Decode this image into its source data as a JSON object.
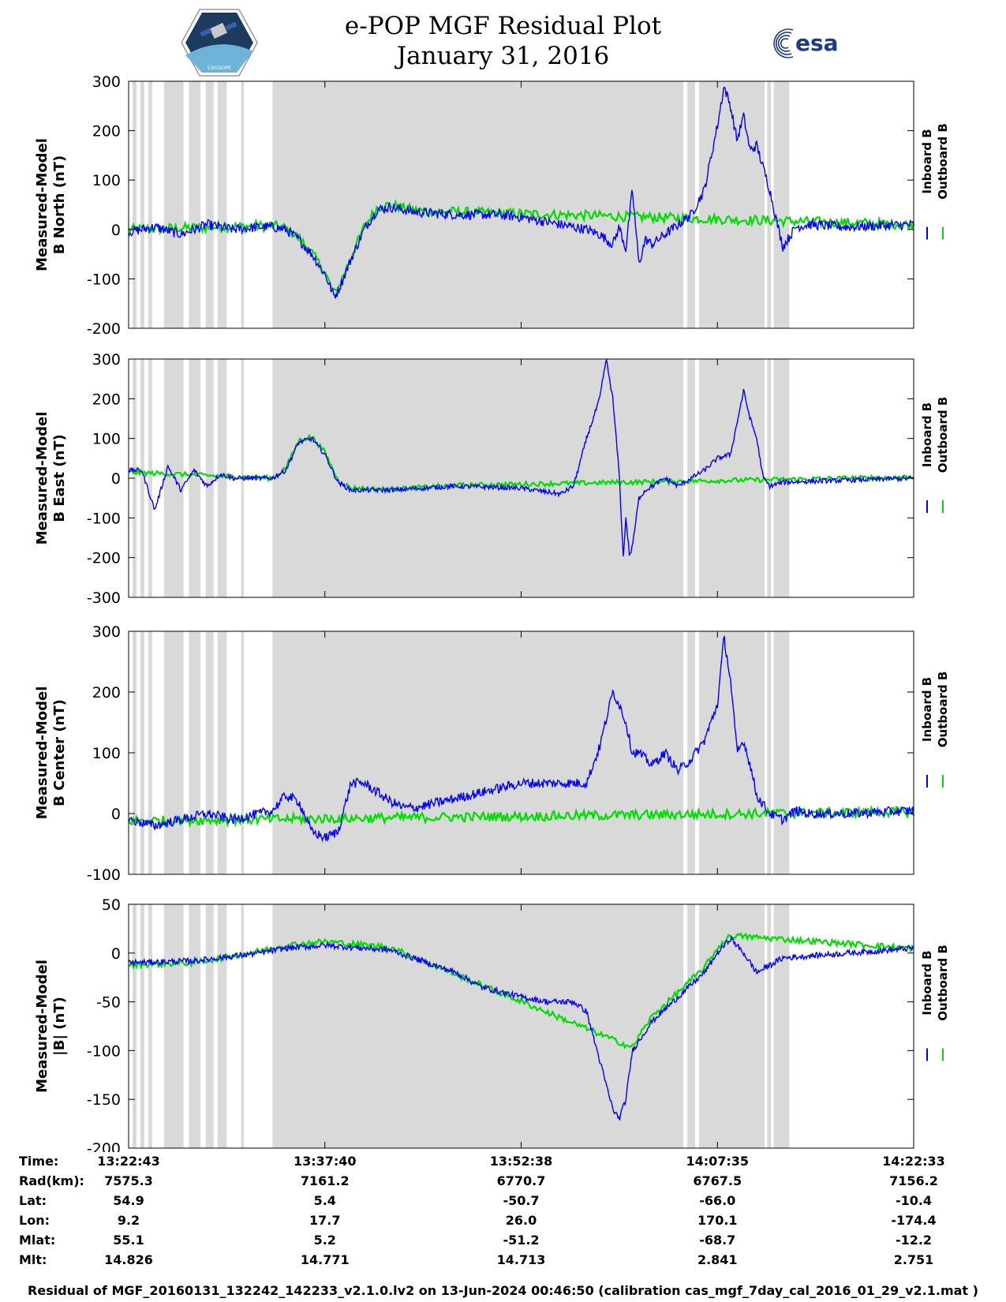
{
  "header": {
    "title_line1": "e-POP MGF Residual Plot",
    "title_line2": "January 31, 2016",
    "logo_left_text": "CASSIOPE",
    "logo_right_text": "esa"
  },
  "colors": {
    "inboard": "#0000ff",
    "outboard": "#00dd00",
    "gap_shading": "#d9d9d9"
  },
  "legend": {
    "inboard_label": "Inboard B",
    "outboard_label": "Outboard B"
  },
  "chart_data": {
    "type": "line",
    "x_ticks": [
      "13:22:43",
      "13:37:40",
      "13:52:38",
      "14:07:35",
      "14:22:33"
    ],
    "x_range_minutes": [
      0,
      60
    ],
    "shaded_intervals_minutes": [
      [
        0.3,
        0.6
      ],
      [
        0.9,
        1.2
      ],
      [
        1.5,
        1.8
      ],
      [
        2.7,
        4.2
      ],
      [
        4.6,
        5.5
      ],
      [
        5.9,
        6.5
      ],
      [
        6.8,
        7.5
      ],
      [
        8.6,
        8.8
      ],
      [
        11,
        42.4
      ],
      [
        42.7,
        43.3
      ],
      [
        43.6,
        48.6
      ],
      [
        48.8,
        49.1
      ],
      [
        49.3,
        50.5
      ]
    ],
    "panels": [
      {
        "ylabel_line1": "Measured-Model",
        "ylabel_line2": "B North (nT)",
        "ylim": [
          -200,
          300
        ],
        "yticks": [
          "300",
          "200",
          "100",
          "0",
          "-100",
          "-200"
        ],
        "tick_values": [
          300,
          200,
          100,
          0,
          -100,
          -200
        ],
        "noise": 10,
        "series": [
          {
            "name": "Inboard B",
            "x": [
              0,
              2,
              4,
              6,
              8,
              10,
              11,
              12,
              13,
              14,
              15,
              15.7,
              16,
              17,
              18,
              19,
              20,
              22,
              25,
              28,
              30,
              33,
              35,
              36,
              37,
              37.5,
              38,
              38.5,
              39,
              39.5,
              40,
              41,
              42,
              43,
              44,
              45,
              45.5,
              46,
              46.5,
              47,
              47.5,
              48,
              49,
              49.5,
              50,
              51,
              52,
              55,
              60
            ],
            "y": [
              -5,
              5,
              -10,
              10,
              0,
              5,
              5,
              0,
              -20,
              -50,
              -90,
              -135,
              -125,
              -60,
              0,
              40,
              45,
              35,
              30,
              30,
              25,
              10,
              0,
              -10,
              -30,
              5,
              -40,
              80,
              -70,
              -20,
              -30,
              -10,
              10,
              30,
              80,
              210,
              290,
              250,
              180,
              230,
              160,
              170,
              80,
              20,
              -35,
              5,
              10,
              5,
              10
            ]
          },
          {
            "name": "Outboard B",
            "x": [
              0,
              11,
              12,
              13,
              14,
              15,
              15.7,
              16,
              17,
              18,
              19,
              20,
              22,
              60
            ],
            "y": [
              0,
              8,
              3,
              -17,
              -47,
              -87,
              -130,
              -120,
              -55,
              5,
              45,
              50,
              38,
              10
            ]
          }
        ]
      },
      {
        "ylabel_line1": "Measured-Model",
        "ylabel_line2": "B East (nT)",
        "ylim": [
          -300,
          300
        ],
        "yticks": [
          "300",
          "200",
          "100",
          "0",
          "-100",
          "-200",
          "-300"
        ],
        "tick_values": [
          300,
          200,
          100,
          0,
          -100,
          -200,
          -300
        ],
        "noise": 6,
        "series": [
          {
            "name": "Inboard B",
            "x": [
              0,
              1,
              2,
              3,
              4,
              5,
              6,
              7,
              8,
              10,
              11,
              12,
              13,
              14,
              15,
              16,
              17,
              20,
              25,
              30,
              33,
              34,
              35,
              36,
              36.5,
              37,
              37.5,
              37.8,
              38,
              38.3,
              38.6,
              39,
              39.5,
              40,
              41,
              42,
              43,
              44,
              45,
              46,
              47,
              47.5,
              48,
              48.5,
              49,
              50,
              55,
              60
            ],
            "y": [
              20,
              20,
              -80,
              30,
              -30,
              20,
              -20,
              10,
              0,
              0,
              0,
              20,
              90,
              100,
              60,
              -10,
              -30,
              -30,
              -20,
              -25,
              -40,
              -20,
              100,
              200,
              300,
              200,
              10,
              -200,
              -100,
              -200,
              -150,
              -50,
              -30,
              -20,
              0,
              -20,
              0,
              20,
              50,
              60,
              220,
              150,
              100,
              0,
              -20,
              -10,
              -5,
              0
            ]
          },
          {
            "name": "Outboard B",
            "x": [
              0,
              11,
              12,
              13,
              14,
              15,
              16,
              17,
              20,
              25,
              60
            ],
            "y": [
              15,
              0,
              25,
              95,
              105,
              65,
              -5,
              -25,
              -28,
              -18,
              3
            ]
          }
        ]
      },
      {
        "ylabel_line1": "Measured-Model",
        "ylabel_line2": "B Center (nT)",
        "ylim": [
          -100,
          300
        ],
        "yticks": [
          "300",
          "200",
          "100",
          "0",
          "-100"
        ],
        "tick_values": [
          300,
          200,
          100,
          0,
          -100
        ],
        "noise": 8,
        "series": [
          {
            "name": "Inboard B",
            "x": [
              0,
              2,
              4,
              6,
              8,
              10,
              11,
              12,
              13,
              14,
              15,
              16,
              16.5,
              17,
              18,
              20,
              21,
              22,
              23,
              25,
              28,
              30,
              33,
              35,
              36,
              37,
              37.5,
              38,
              38.5,
              39,
              40,
              41,
              42,
              43,
              44,
              44.5,
              45,
              45.5,
              46,
              46.5,
              47,
              47.5,
              48,
              49,
              50,
              51,
              52,
              55,
              60
            ],
            "y": [
              -10,
              -20,
              -10,
              0,
              -10,
              0,
              5,
              30,
              20,
              -30,
              -40,
              -30,
              10,
              50,
              50,
              20,
              10,
              10,
              15,
              25,
              40,
              50,
              50,
              50,
              110,
              200,
              180,
              150,
              100,
              100,
              80,
              100,
              70,
              90,
              120,
              150,
              180,
              290,
              220,
              100,
              120,
              80,
              30,
              0,
              -10,
              5,
              0,
              0,
              5
            ]
          },
          {
            "name": "Outboard B",
            "x": [
              0,
              60
            ],
            "y": [
              -12,
              3
            ]
          }
        ]
      },
      {
        "ylabel_line1": "Measured-Model",
        "ylabel_line2": "|B| (nT)",
        "ylim": [
          -200,
          50
        ],
        "yticks": [
          "50",
          "0",
          "-50",
          "-100",
          "-150",
          "-200"
        ],
        "tick_values": [
          50,
          0,
          -50,
          -100,
          -150,
          -200
        ],
        "noise": 3,
        "series": [
          {
            "name": "Inboard B",
            "x": [
              0,
              5,
              10,
              12,
              15,
              20,
              25,
              27,
              30,
              32,
              34,
              35,
              36,
              37,
              37.5,
              38,
              38.5,
              39,
              40,
              42,
              44,
              45,
              46,
              47,
              48,
              50,
              55,
              60
            ],
            "y": [
              -10,
              -8,
              0,
              5,
              8,
              3,
              -20,
              -35,
              -45,
              -50,
              -50,
              -60,
              -110,
              -160,
              -170,
              -150,
              -100,
              -90,
              -70,
              -45,
              -20,
              0,
              15,
              0,
              -20,
              -5,
              0,
              5
            ]
          },
          {
            "name": "Outboard B",
            "x": [
              0,
              5,
              10,
              12,
              15,
              20,
              38.5,
              39,
              40,
              42,
              44,
              45,
              46,
              60
            ],
            "y": [
              -12,
              -10,
              2,
              8,
              12,
              6,
              -97,
              -85,
              -65,
              -40,
              -15,
              5,
              18,
              5
            ]
          }
        ]
      }
    ]
  },
  "orbit_table": {
    "row_labels": [
      "Time:",
      "Rad(km):",
      "Lat:",
      "Lon:",
      "Mlat:",
      "Mlt:"
    ],
    "columns": [
      [
        "13:22:43",
        "7575.3",
        "54.9",
        "9.2",
        "55.1",
        "14.826"
      ],
      [
        "13:37:40",
        "7161.2",
        "5.4",
        "17.7",
        "5.2",
        "14.771"
      ],
      [
        "13:52:38",
        "6770.7",
        "-50.7",
        "26.0",
        "-51.2",
        "14.713"
      ],
      [
        "14:07:35",
        "6767.5",
        "-66.0",
        "170.1",
        "-68.7",
        "2.841"
      ],
      [
        "14:22:33",
        "7156.2",
        "-10.4",
        "-174.4",
        "-12.2",
        "2.751"
      ]
    ]
  },
  "footer": "Residual of MGF_20160131_132242_142233_v2.1.0.lv2 on 13-Jun-2024 00:46:50 (calibration cas_mgf_7day_cal_2016_01_29_v2.1.mat )"
}
